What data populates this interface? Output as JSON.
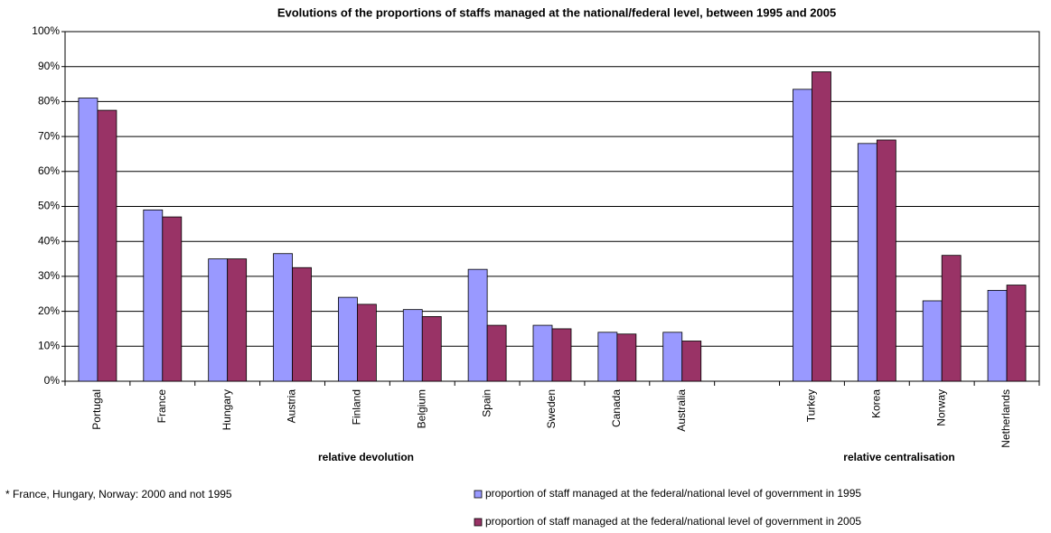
{
  "chart_data": {
    "type": "bar",
    "title": "Evolutions of the proportions of staffs managed at the national/federal level, between 1995 and 2005",
    "categories": [
      "Portugal",
      "France",
      "Hungary",
      "Austria",
      "Finland",
      "Belgium",
      "Spain",
      "Sweden",
      "Canada",
      "Australia",
      null,
      "Turkey",
      "Korea",
      "Norway",
      "Netherlands"
    ],
    "series": [
      {
        "name": "proportion of staff managed at the federal/national level of government in 1995",
        "color": "#9999ff",
        "values": [
          81,
          49,
          35,
          36.5,
          24,
          20.5,
          32,
          16,
          14,
          14,
          null,
          83.5,
          68,
          23,
          26
        ]
      },
      {
        "name": "proportion of staff managed at the federal/national level of government in 2005",
        "color": "#993366",
        "values": [
          77.5,
          47,
          35,
          32.5,
          22,
          18.5,
          16,
          15,
          13.5,
          11.5,
          null,
          88.5,
          69,
          36,
          27.5
        ]
      }
    ],
    "ylim": [
      0,
      100
    ],
    "yticks": [
      {
        "value": 0,
        "label": "0%"
      },
      {
        "value": 10,
        "label": "10%"
      },
      {
        "value": 20,
        "label": "20%"
      },
      {
        "value": 30,
        "label": "30%"
      },
      {
        "value": 40,
        "label": "40%"
      },
      {
        "value": 50,
        "label": "50%"
      },
      {
        "value": 60,
        "label": "60%"
      },
      {
        "value": 70,
        "label": "70%"
      },
      {
        "value": 80,
        "label": "80%"
      },
      {
        "value": 90,
        "label": "90%"
      },
      {
        "value": 100,
        "label": "100%"
      }
    ],
    "grid": true,
    "annotations": [
      "relative devolution",
      "relative centralisation",
      "* France, Hungary, Norway: 2000 and not 1995"
    ]
  }
}
